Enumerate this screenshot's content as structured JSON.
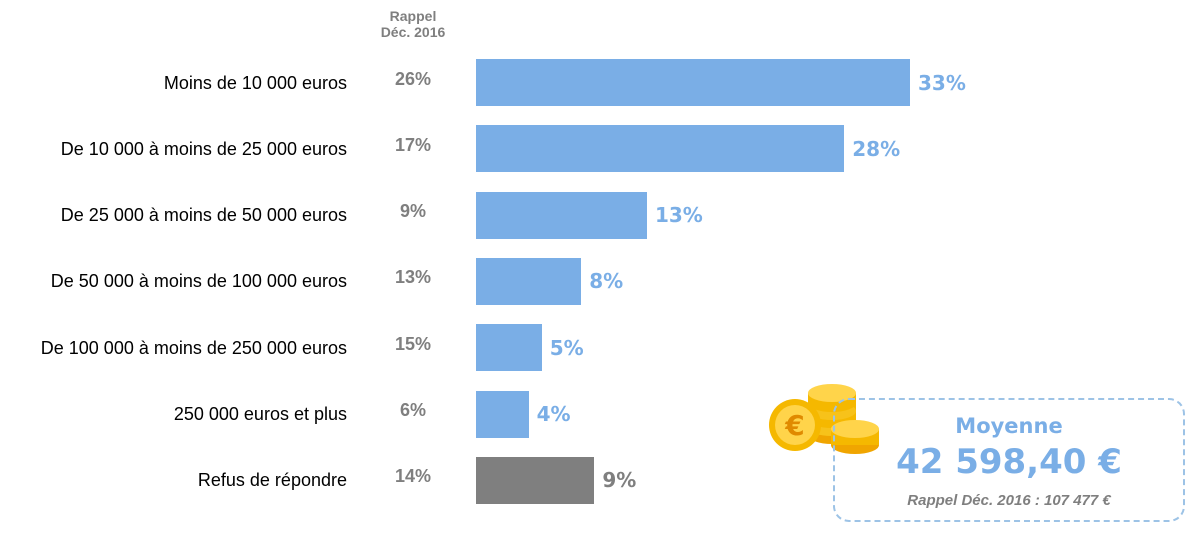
{
  "chart_data": {
    "type": "bar",
    "orientation": "horizontal",
    "reference_header": "Rappel\nDéc. 2016",
    "categories": [
      "Moins de 10 000 euros",
      "De 10 000 à moins de 25 000 euros",
      "De 25 000 à moins de 50 000 euros",
      "De 50 000 à moins de 100 000 euros",
      "De 100 000 à moins de 250 000 euros",
      "250 000 euros et plus",
      "Refus de répondre"
    ],
    "values": [
      33,
      28,
      13,
      8,
      5,
      4,
      9
    ],
    "value_labels": [
      "33%",
      "28%",
      "13%",
      "8%",
      "5%",
      "4%",
      "9%"
    ],
    "reference_labels": [
      "26%",
      "17%",
      "9%",
      "13%",
      "15%",
      "6%",
      "14%"
    ],
    "reference_values": [
      26,
      17,
      9,
      13,
      15,
      6,
      14
    ],
    "bar_colors": [
      "#7aaee6",
      "#7aaee6",
      "#7aaee6",
      "#7aaee6",
      "#7aaee6",
      "#7aaee6",
      "#7f7f7f"
    ],
    "label_colors": [
      "#7aaee6",
      "#7aaee6",
      "#7aaee6",
      "#7aaee6",
      "#7aaee6",
      "#7aaee6",
      "#7f7f7f"
    ],
    "xlim": [
      0,
      35
    ],
    "grid": false
  },
  "summary": {
    "title": "Moyenne",
    "value": "42 598,40 €",
    "reference": "Rappel Déc. 2016 : 107 477 €",
    "icon": "euro-coins-icon"
  }
}
